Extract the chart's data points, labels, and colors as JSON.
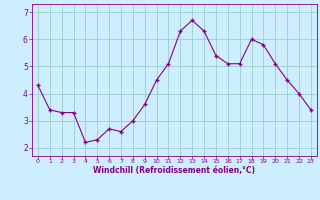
{
  "x": [
    0,
    1,
    2,
    3,
    4,
    5,
    6,
    7,
    8,
    9,
    10,
    11,
    12,
    13,
    14,
    15,
    16,
    17,
    18,
    19,
    20,
    21,
    22,
    23
  ],
  "y": [
    4.3,
    3.4,
    3.3,
    3.3,
    2.2,
    2.3,
    2.7,
    2.6,
    3.0,
    3.6,
    4.5,
    5.1,
    6.3,
    6.7,
    6.3,
    5.4,
    5.1,
    5.1,
    6.0,
    5.8,
    5.1,
    4.5,
    4.0,
    3.4
  ],
  "line_color": "#880088",
  "marker_color": "#880088",
  "bg_color": "#cceeff",
  "grid_color": "#99cccc",
  "axis_color": "#880088",
  "xlabel": "Windchill (Refroidissement éolien,°C)",
  "xlim": [
    -0.5,
    23.5
  ],
  "ylim": [
    1.7,
    7.3
  ],
  "yticks": [
    2,
    3,
    4,
    5,
    6,
    7
  ],
  "xticks": [
    0,
    1,
    2,
    3,
    4,
    5,
    6,
    7,
    8,
    9,
    10,
    11,
    12,
    13,
    14,
    15,
    16,
    17,
    18,
    19,
    20,
    21,
    22,
    23
  ]
}
